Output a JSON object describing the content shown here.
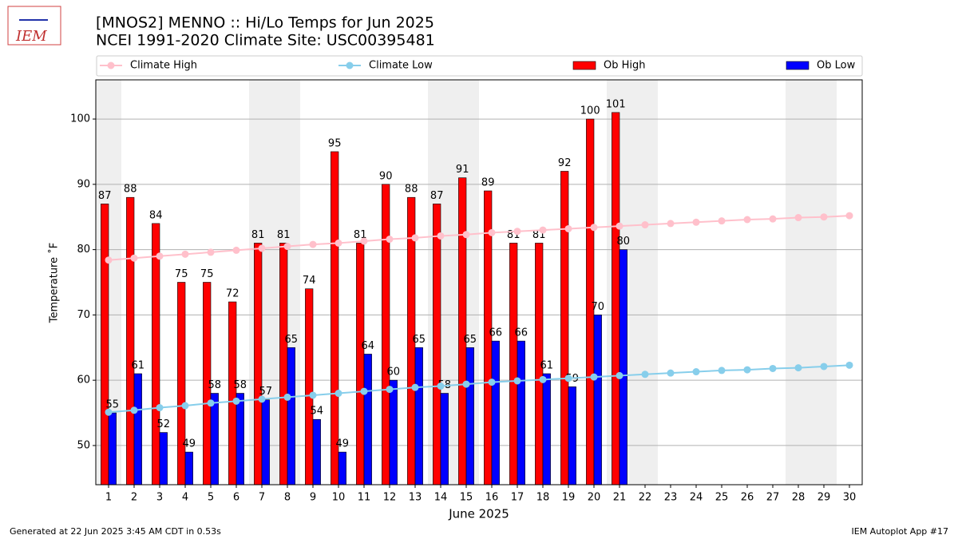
{
  "chart_data": {
    "type": "bar",
    "title": "[MNOS2] MENNO :: Hi/Lo Temps for Jun 2025",
    "subtitle": "NCEI 1991-2020 Climate Site: USC00395481",
    "logo_text": "IEM",
    "xlabel": "June 2025",
    "ylabel": "Temperature ˚F",
    "footer_left": "Generated at 22 Jun 2025 3:45 AM CDT in 0.53s",
    "footer_right": "IEM Autoplot App #17",
    "x": [
      1,
      2,
      3,
      4,
      5,
      6,
      7,
      8,
      9,
      10,
      11,
      12,
      13,
      14,
      15,
      16,
      17,
      18,
      19,
      20,
      21,
      22,
      23,
      24,
      25,
      26,
      27,
      28,
      29,
      30
    ],
    "xlim": [
      0.5,
      30.5
    ],
    "xticks": [
      1,
      2,
      3,
      4,
      5,
      6,
      7,
      8,
      9,
      10,
      11,
      12,
      13,
      14,
      15,
      16,
      17,
      18,
      19,
      20,
      21,
      22,
      23,
      24,
      25,
      26,
      27,
      28,
      29,
      30
    ],
    "shaded_x": [
      1,
      7,
      8,
      14,
      15,
      21,
      22,
      28,
      29
    ],
    "shade_color": "#efefef",
    "ylim": [
      44,
      106
    ],
    "yticks": [
      50,
      60,
      70,
      80,
      90,
      100
    ],
    "grid": true,
    "series": [
      {
        "name": "Climate High",
        "type": "line",
        "color": "#ffc0cb",
        "values": [
          78.4,
          78.7,
          79.0,
          79.3,
          79.6,
          79.9,
          80.2,
          80.5,
          80.8,
          81.0,
          81.3,
          81.6,
          81.8,
          82.1,
          82.3,
          82.6,
          82.8,
          83.0,
          83.2,
          83.4,
          83.6,
          83.8,
          84.0,
          84.2,
          84.4,
          84.6,
          84.7,
          84.9,
          85.0,
          85.2
        ]
      },
      {
        "name": "Climate Low",
        "type": "line",
        "color": "#87ceeb",
        "values": [
          55.1,
          55.4,
          55.8,
          56.1,
          56.5,
          56.8,
          57.1,
          57.4,
          57.7,
          58.0,
          58.3,
          58.6,
          58.9,
          59.1,
          59.4,
          59.7,
          59.9,
          60.1,
          60.3,
          60.5,
          60.7,
          60.9,
          61.1,
          61.3,
          61.5,
          61.6,
          61.8,
          61.9,
          62.1,
          62.3
        ]
      },
      {
        "name": "Ob High",
        "type": "bar",
        "color": "#ff0000",
        "values": [
          87,
          88,
          84,
          75,
          75,
          72,
          81,
          81,
          74,
          95,
          81,
          90,
          88,
          87,
          91,
          89,
          81,
          81,
          92,
          100,
          101,
          null,
          null,
          null,
          null,
          null,
          null,
          null,
          null,
          null
        ]
      },
      {
        "name": "Ob Low",
        "type": "bar",
        "color": "#0000ff",
        "values": [
          55,
          61,
          52,
          49,
          58,
          58,
          57,
          65,
          54,
          49,
          64,
          60,
          65,
          58,
          65,
          66,
          66,
          61,
          59,
          70,
          80,
          null,
          null,
          null,
          null,
          null,
          null,
          null,
          null,
          null
        ]
      }
    ]
  }
}
